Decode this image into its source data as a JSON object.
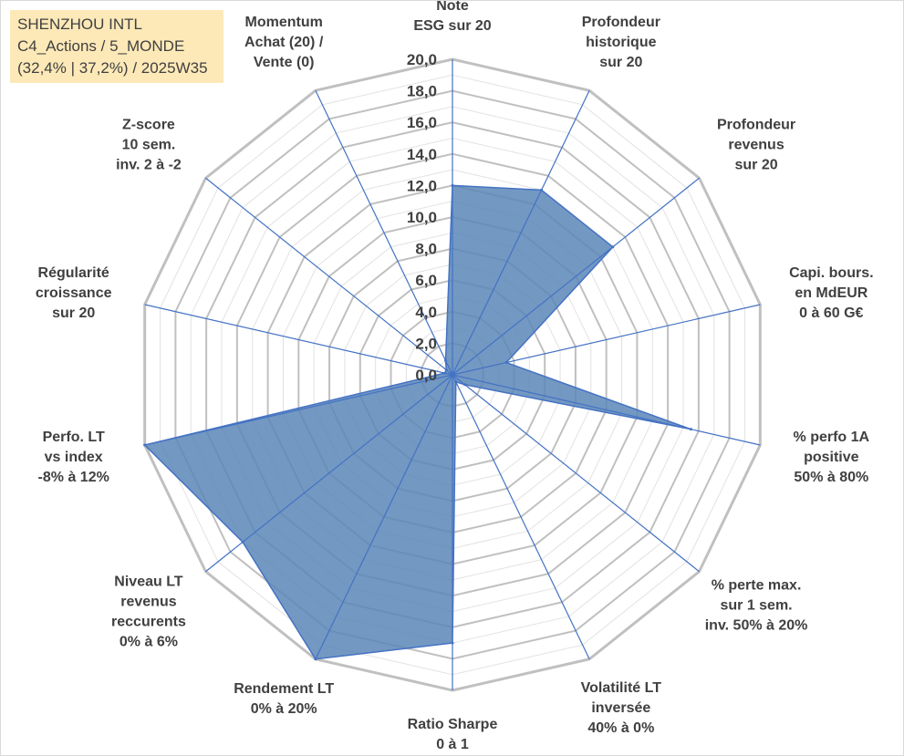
{
  "header": {
    "title": "SHENZHOU INTL",
    "line2": "C4_Actions / 5_MONDE",
    "line3": "(32,4% | 37,2%) / 2025W35"
  },
  "chart_data": {
    "type": "radar",
    "title": "",
    "rmin": 0,
    "rmax": 20,
    "tick_step": 2,
    "tick_labels": [
      "0,0",
      "2,0",
      "4,0",
      "6,0",
      "8,0",
      "10,0",
      "12,0",
      "14,0",
      "16,0",
      "18,0",
      "20,0"
    ],
    "grid": true,
    "axes": [
      {
        "label": [
          "Note",
          "ESG sur 20"
        ],
        "value": 12.0
      },
      {
        "label": [
          "Profondeur",
          "historique",
          "sur 20"
        ],
        "value": 13.0
      },
      {
        "label": [
          "Profondeur",
          "revenus",
          "sur 20"
        ],
        "value": 13.0
      },
      {
        "label": [
          "Capi. bours.",
          "en MdEUR",
          "0 à 60 G€"
        ],
        "value": 3.5
      },
      {
        "label": [
          "% perfo 1A",
          "positive",
          "50% à 80%"
        ],
        "value": 15.5
      },
      {
        "label": [
          "% perte max.",
          "sur 1 sem.",
          "inv. 50% à 20%"
        ],
        "value": 1.0
      },
      {
        "label": [
          "Volatilité LT",
          "inversée",
          "40% à 0%"
        ],
        "value": 0.5
      },
      {
        "label": [
          "Ratio Sharpe",
          "0 à 1"
        ],
        "value": 17.0
      },
      {
        "label": [
          "Rendement LT",
          "0% à 20%"
        ],
        "value": 20.0
      },
      {
        "label": [
          "Niveau LT",
          "revenus",
          "reccurents",
          "0% à 6%"
        ],
        "value": 17.0
      },
      {
        "label": [
          "Perfo. LT",
          "vs index",
          "-8% à 12%"
        ],
        "value": 20.0
      },
      {
        "label": [
          "Régularité",
          "croissance",
          "sur 20"
        ],
        "value": 0.5
      },
      {
        "label": [
          "Z-score",
          "10 sem.",
          "inv. 2 à -2"
        ],
        "value": 0.5
      },
      {
        "label": [
          "Momentum",
          "Achat (20) /",
          "Vente (0)"
        ],
        "value": 1.0
      }
    ],
    "colors": {
      "fill": "#5b86b7",
      "stroke": "#4472c4",
      "spoke": "#4472c4",
      "grid": "#c0c0c0",
      "minor_grid": "#e2e2e2",
      "label": "#404040"
    }
  }
}
